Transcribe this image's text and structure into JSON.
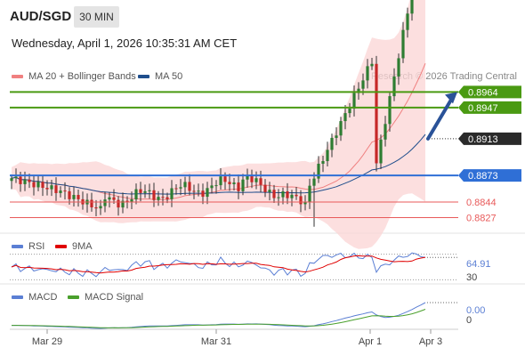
{
  "header": {
    "symbol": "AUD/SGD",
    "timeframe": "30 MIN",
    "datetime": "Wednesday, April 1, 2026 10:35:31 AM CET",
    "credit": "Research © 2026 Trading Central"
  },
  "legends": {
    "main": [
      {
        "label": "MA 20 + Bollinger Bands",
        "color": "#f08080"
      },
      {
        "label": "MA 50",
        "color": "#1f4e8c"
      }
    ],
    "rsi": [
      {
        "label": "RSI",
        "color": "#5b7fd4"
      },
      {
        "label": "9MA",
        "color": "#e00000"
      }
    ],
    "macd": [
      {
        "label": "MACD",
        "color": "#5b7fd4"
      },
      {
        "label": "MACD Signal",
        "color": "#4aa02c"
      }
    ]
  },
  "colors": {
    "target": "#4a9a12",
    "pivot": "#2f6fd6",
    "support": "#e85a5a",
    "last": "#2a2a2a",
    "arrow": "#2a5298",
    "up_candle": "#2e7d32",
    "down_candle": "#c62828",
    "band_fill": "#fbd4d4",
    "ma20": "#f08080",
    "ma50": "#1f4e8c"
  },
  "chart_data": [
    {
      "type": "candlestick",
      "title": "",
      "x": [
        "Mar 29",
        "Mar 31",
        "Apr 1",
        "Apr 3"
      ],
      "ylim": [
        0.881,
        0.8975
      ],
      "levels": [
        {
          "label": "0.8964",
          "value": 0.8964,
          "kind": "target"
        },
        {
          "label": "0.8947",
          "value": 0.8947,
          "kind": "target"
        },
        {
          "label": "0.8913",
          "value": 0.8913,
          "kind": "last"
        },
        {
          "label": "0.8873",
          "value": 0.8873,
          "kind": "pivot"
        },
        {
          "label": "0.8844",
          "value": 0.8844,
          "kind": "support"
        },
        {
          "label": "0.8827",
          "value": 0.8827,
          "kind": "support"
        }
      ],
      "forecast": {
        "from": 0.8913,
        "to": 0.8964,
        "direction": "up"
      },
      "series": [
        {
          "name": "MA 20 + Bollinger Bands"
        },
        {
          "name": "MA 50"
        }
      ]
    },
    {
      "type": "line",
      "title": "",
      "ylim": [
        25,
        75
      ],
      "ticks": [
        "64.91",
        "30"
      ],
      "last_value": "64.91",
      "series": [
        {
          "name": "RSI"
        },
        {
          "name": "9MA"
        }
      ]
    },
    {
      "type": "line",
      "title": "",
      "ticks": [
        "0.00",
        "0"
      ],
      "last_value": "0.00",
      "series": [
        {
          "name": "MACD"
        },
        {
          "name": "MACD Signal"
        }
      ]
    }
  ]
}
